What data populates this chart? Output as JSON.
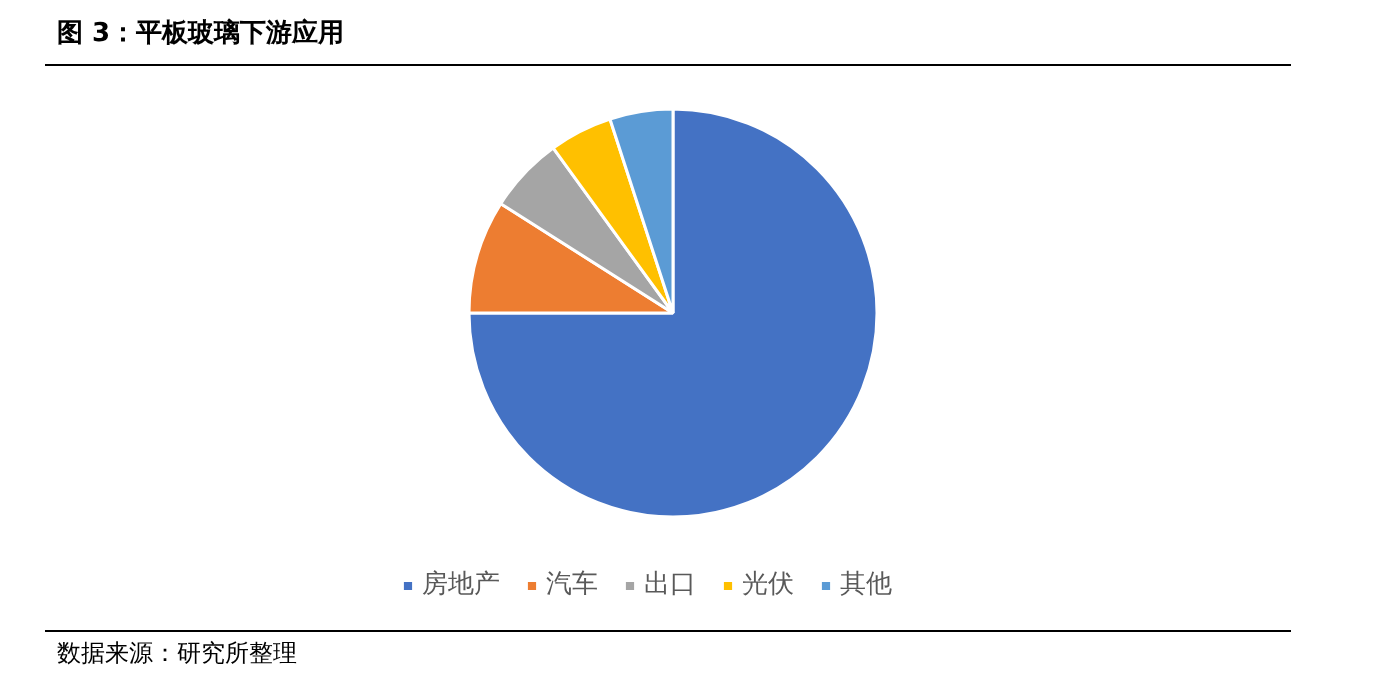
{
  "chart_data": {
    "type": "pie",
    "title": "图 3：平板玻璃下游应用",
    "categories": [
      "房地产",
      "汽车",
      "出口",
      "光伏",
      "其他"
    ],
    "values": [
      75,
      9,
      6,
      5,
      5
    ],
    "colors": [
      "#4472c4",
      "#ed7d31",
      "#a5a5a5",
      "#ffc000",
      "#5b9bd5"
    ],
    "legend": "bottom",
    "annotations": [
      "数据来源：研究所整理"
    ]
  }
}
